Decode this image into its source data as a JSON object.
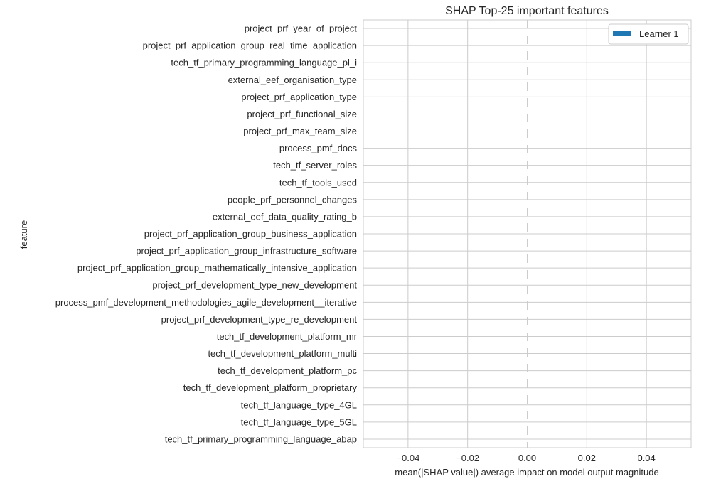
{
  "chart_data": {
    "type": "bar",
    "orientation": "horizontal",
    "title": "SHAP Top-25 important features",
    "xlabel": "mean(|SHAP value|) average impact on model output magnitude",
    "ylabel": "feature",
    "xlim": [
      -0.055,
      0.055
    ],
    "xticks": [
      -0.04,
      -0.02,
      0.0,
      0.02,
      0.04
    ],
    "xtick_labels": [
      "−0.04",
      "−0.02",
      "0.00",
      "0.02",
      "0.04"
    ],
    "grid": true,
    "legend_placement": "top-right",
    "categories": [
      "project_prf_year_of_project",
      "project_prf_application_group_real_time_application",
      "tech_tf_primary_programming_language_pl_i",
      "external_eef_organisation_type",
      "project_prf_application_type",
      "project_prf_functional_size",
      "project_prf_max_team_size",
      "process_pmf_docs",
      "tech_tf_server_roles",
      "tech_tf_tools_used",
      "people_prf_personnel_changes",
      "external_eef_data_quality_rating_b",
      "project_prf_application_group_business_application",
      "project_prf_application_group_infrastructure_software",
      "project_prf_application_group_mathematically_intensive_application",
      "project_prf_development_type_new_development",
      "process_pmf_development_methodologies_agile_development__iterative",
      "project_prf_development_type_re_development",
      "tech_tf_development_platform_mr",
      "tech_tf_development_platform_multi",
      "tech_tf_development_platform_pc",
      "tech_tf_development_platform_proprietary",
      "tech_tf_language_type_4GL",
      "tech_tf_language_type_5GL",
      "tech_tf_primary_programming_language_abap"
    ],
    "series": [
      {
        "name": "Learner 1",
        "color": "#1f77b4",
        "values": [
          0,
          0,
          0,
          0,
          0,
          0,
          0,
          0,
          0,
          0,
          0,
          0,
          0,
          0,
          0,
          0,
          0,
          0,
          0,
          0,
          0,
          0,
          0,
          0,
          0
        ]
      }
    ]
  }
}
